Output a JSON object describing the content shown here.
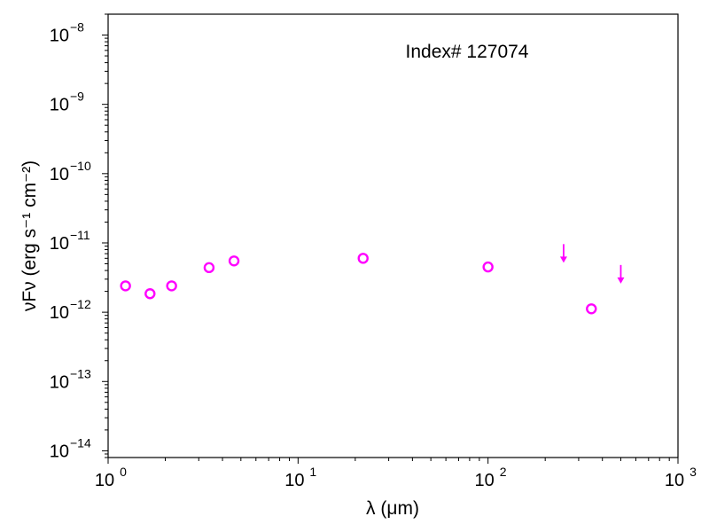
{
  "chart_data": {
    "type": "scatter",
    "title": "",
    "annotation": "Index# 127074",
    "xlabel": "λ (μm)",
    "ylabel": "νFν (erg s⁻¹ cm⁻²)",
    "xscale": "log",
    "yscale": "log",
    "xlim": [
      1,
      1000
    ],
    "ylim": [
      8e-15,
      2e-08
    ],
    "grid": false,
    "legend": "none",
    "color": "#ff00ff",
    "x_ticks": [
      {
        "base": "10",
        "exp": "0"
      },
      {
        "base": "10",
        "exp": "1"
      },
      {
        "base": "10",
        "exp": "2"
      },
      {
        "base": "10",
        "exp": "3"
      }
    ],
    "y_ticks": [
      {
        "base": "10",
        "exp": "−14"
      },
      {
        "base": "10",
        "exp": "−13"
      },
      {
        "base": "10",
        "exp": "−12"
      },
      {
        "base": "10",
        "exp": "−11"
      },
      {
        "base": "10",
        "exp": "−10"
      },
      {
        "base": "10",
        "exp": "−9"
      },
      {
        "base": "10",
        "exp": "−8"
      }
    ],
    "series": [
      {
        "marker": "open-circle",
        "points": [
          {
            "x": 1.235,
            "y": 2.4e-12
          },
          {
            "x": 1.662,
            "y": 1.85e-12
          },
          {
            "x": 2.159,
            "y": 2.4e-12
          },
          {
            "x": 3.4,
            "y": 4.4e-12
          },
          {
            "x": 4.6,
            "y": 5.5e-12
          },
          {
            "x": 22,
            "y": 6e-12
          },
          {
            "x": 100,
            "y": 4.5e-12
          },
          {
            "x": 350,
            "y": 1.12e-12
          }
        ]
      },
      {
        "marker": "upper-limit-arrow",
        "points": [
          {
            "x": 250,
            "y": 6e-12
          },
          {
            "x": 500,
            "y": 3e-12
          }
        ]
      }
    ]
  }
}
